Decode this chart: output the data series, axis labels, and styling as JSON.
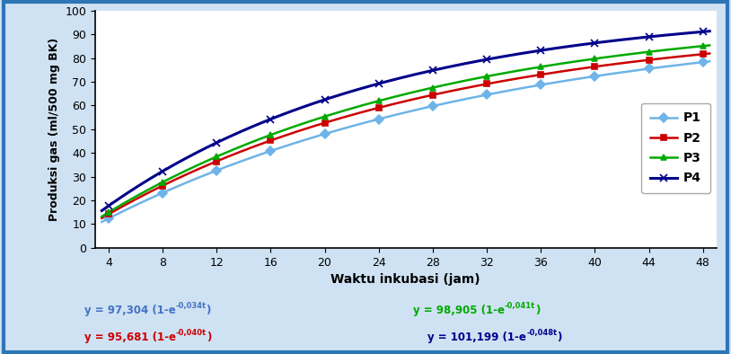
{
  "time_points": [
    4,
    8,
    12,
    16,
    20,
    24,
    28,
    32,
    36,
    40,
    44,
    48
  ],
  "series_order": [
    "P1",
    "P2",
    "P3",
    "P4"
  ],
  "series": {
    "P1": {
      "a": 97.304,
      "b": 0.034,
      "color": "#6eb4e8",
      "marker": "D",
      "markersize": 5,
      "linewidth": 1.8,
      "markerfacecolor": "#6eb4e8"
    },
    "P2": {
      "a": 95.681,
      "b": 0.04,
      "color": "#cc0000",
      "marker": "s",
      "markersize": 5,
      "linewidth": 1.8,
      "markerfacecolor": "#cc0000"
    },
    "P3": {
      "a": 98.905,
      "b": 0.041,
      "color": "#00aa00",
      "marker": "^",
      "markersize": 5,
      "linewidth": 1.8,
      "markerfacecolor": "#00aa00"
    },
    "P4": {
      "a": 101.199,
      "b": 0.048,
      "color": "#00008b",
      "marker": "x",
      "markersize": 6,
      "linewidth": 2.2,
      "markerfacecolor": "#00008b"
    }
  },
  "xlabel": "Waktu inkubasi (jam)",
  "ylabel": "Produksi gas (ml/500 mg BK)",
  "ylim": [
    0,
    100
  ],
  "yticks": [
    0,
    10,
    20,
    30,
    40,
    50,
    60,
    70,
    80,
    90,
    100
  ],
  "xlim": [
    3,
    49
  ],
  "xticks": [
    4,
    8,
    12,
    16,
    20,
    24,
    28,
    32,
    36,
    40,
    44,
    48
  ],
  "plot_bg": "#ffffff",
  "outer_bg": "#cfe2f3",
  "border_color": "#2e75b6",
  "legend_labels": [
    "P1",
    "P2",
    "P3",
    "P4"
  ],
  "equations": [
    {
      "main": "y = 97,304 (1-e",
      "sup": "-0,034t",
      "suffix": ")",
      "xf": 0.115,
      "yf": 0.115,
      "color": "#4472c4"
    },
    {
      "main": "y = 95,681 (1-e",
      "sup": "-0,040t",
      "suffix": ")",
      "xf": 0.115,
      "yf": 0.038,
      "color": "#cc0000"
    },
    {
      "main": "y = 98,905 (1-e",
      "sup": "-0,041t",
      "suffix": ")",
      "xf": 0.565,
      "yf": 0.115,
      "color": "#00aa00"
    },
    {
      "main": "y = 101,199 (1-e",
      "sup": "-0,048t",
      "suffix": ")",
      "xf": 0.585,
      "yf": 0.038,
      "color": "#00008b"
    }
  ]
}
